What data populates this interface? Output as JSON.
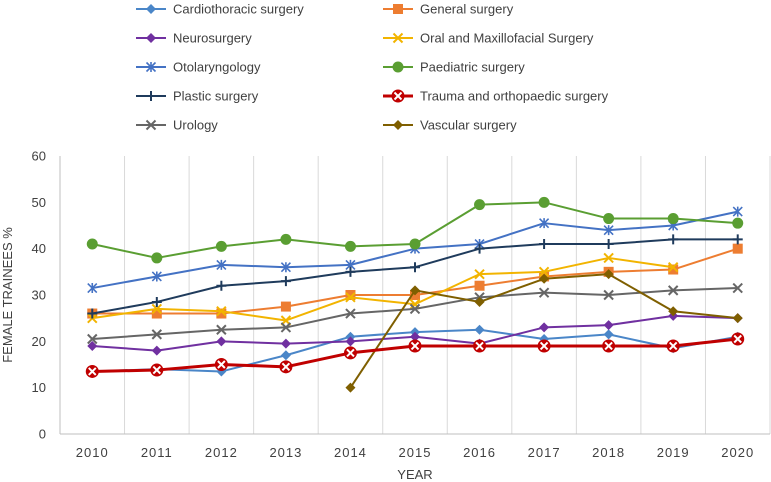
{
  "chart_data": {
    "type": "line",
    "title": "",
    "xlabel": "YEAR",
    "ylabel": "FEMALE TRAINEES %",
    "ylim": [
      0,
      60
    ],
    "yticks": [
      0,
      10,
      20,
      30,
      40,
      50,
      60
    ],
    "categories": [
      "2010",
      "2011",
      "2012",
      "2013",
      "2014",
      "2015",
      "2016",
      "2017",
      "2018",
      "2019",
      "2020"
    ],
    "grid": "vertical",
    "legend_position": "top",
    "series": [
      {
        "name": "Cardiothoracic surgery",
        "color": "#4a86c8",
        "marker": "diamond",
        "values": [
          13.5,
          14,
          13.5,
          17,
          21,
          22,
          22.5,
          20.5,
          21.5,
          18.5,
          21
        ]
      },
      {
        "name": "General surgery",
        "color": "#ed7d31",
        "marker": "square",
        "values": [
          26,
          26,
          26,
          27.5,
          30,
          30,
          32,
          34,
          35,
          35.5,
          40
        ]
      },
      {
        "name": "Neurosurgery",
        "color": "#7030a0",
        "marker": "diamond",
        "values": [
          19,
          18,
          20,
          19.5,
          20,
          21,
          19.5,
          23,
          23.5,
          25.5,
          25
        ]
      },
      {
        "name": "Oral and Maxillofacial Surgery",
        "color": "#f2b400",
        "marker": "x",
        "values": [
          25,
          27,
          26.5,
          24.5,
          29.5,
          28,
          34.5,
          35,
          38,
          36,
          null
        ]
      },
      {
        "name": "Otolaryngology",
        "color": "#4472c4",
        "marker": "star",
        "values": [
          31.5,
          34,
          36.5,
          36,
          36.5,
          40,
          41,
          45.5,
          44,
          45,
          48
        ]
      },
      {
        "name": "Paediatric surgery",
        "color": "#5a9e32",
        "marker": "circle",
        "values": [
          41,
          38,
          40.5,
          42,
          40.5,
          41,
          49.5,
          50,
          46.5,
          46.5,
          45.5
        ]
      },
      {
        "name": "Plastic surgery",
        "color": "#1f3b5c",
        "marker": "plus",
        "values": [
          26,
          28.5,
          32,
          33,
          35,
          36,
          40,
          41,
          41,
          42,
          42
        ]
      },
      {
        "name": "Trauma and orthopaedic surgery",
        "color": "#c00000",
        "marker": "circle-x",
        "values": [
          13.5,
          13.8,
          15,
          14.5,
          17.5,
          19,
          19,
          19,
          19,
          19,
          20.5
        ]
      },
      {
        "name": "Urology",
        "color": "#666666",
        "marker": "x",
        "values": [
          20.5,
          21.5,
          22.5,
          23,
          26,
          27,
          29.5,
          30.5,
          30,
          31,
          31.5
        ]
      },
      {
        "name": "Vascular surgery",
        "color": "#7f5f00",
        "marker": "diamond",
        "values": [
          null,
          null,
          null,
          null,
          10,
          31,
          28.5,
          33.5,
          34.5,
          26.5,
          25
        ]
      }
    ]
  }
}
